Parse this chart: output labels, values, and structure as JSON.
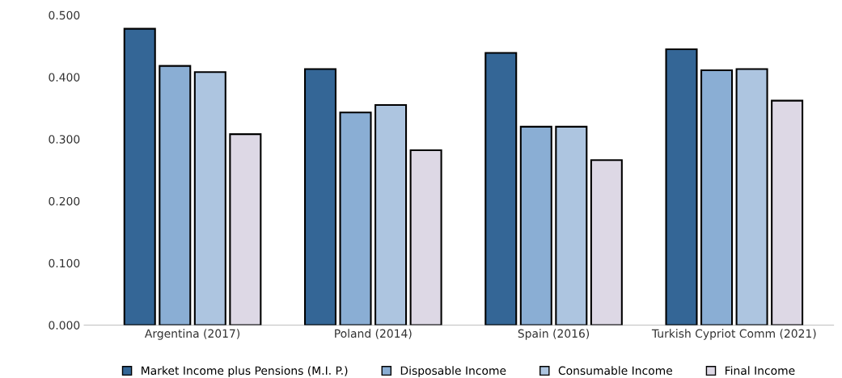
{
  "chart_data": {
    "type": "bar",
    "categories": [
      "Argentina (2017)",
      "Poland (2014)",
      "Spain (2016)",
      "Turkish Cypriot Comm (2021)"
    ],
    "series": [
      {
        "name": "Market Income plus Pensions (M.I. P.)",
        "color": "#346696",
        "values": [
          0.478,
          0.413,
          0.439,
          0.445
        ]
      },
      {
        "name": "Disposable Income",
        "color": "#8aaed4",
        "values": [
          0.418,
          0.343,
          0.32,
          0.411
        ]
      },
      {
        "name": "Consumable Income",
        "color": "#adc5e0",
        "values": [
          0.408,
          0.355,
          0.32,
          0.413
        ]
      },
      {
        "name": "Final Income",
        "color": "#ddd8e5",
        "values": [
          0.308,
          0.282,
          0.266,
          0.362
        ]
      }
    ],
    "ylim": [
      0,
      0.5
    ],
    "yticks": [
      {
        "value": 0,
        "label": "0.000"
      },
      {
        "value": 0.1,
        "label": "0.100"
      },
      {
        "value": 0.2,
        "label": "0.200"
      },
      {
        "value": 0.3,
        "label": "0.300"
      },
      {
        "value": 0.4,
        "label": "0.400"
      },
      {
        "value": 0.5,
        "label": "0.500"
      }
    ],
    "grid": false,
    "legend": "bottom"
  }
}
